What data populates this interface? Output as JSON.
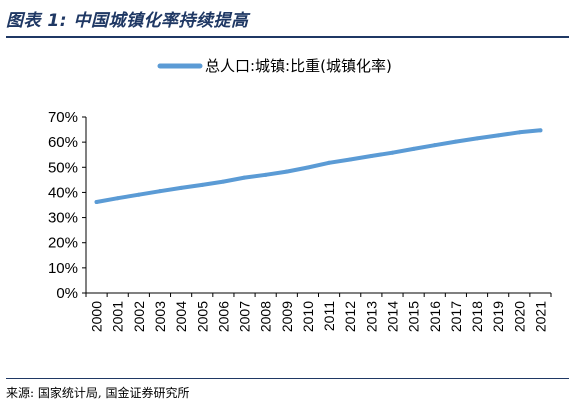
{
  "figure": {
    "title": "图表 1:  中国城镇化率持续提高",
    "source": "来源: 国家统计局, 国金证券研究所"
  },
  "colors": {
    "series_line": "#5b9bd5",
    "title_text": "#1f3864",
    "axis": "#000000"
  },
  "chart_data": {
    "type": "line",
    "title": "",
    "xlabel": "",
    "ylabel": "",
    "legend_position": "top-center",
    "grid": false,
    "categories": [
      "2000",
      "2001",
      "2002",
      "2003",
      "2004",
      "2005",
      "2006",
      "2007",
      "2008",
      "2009",
      "2010",
      "2011",
      "2012",
      "2013",
      "2014",
      "2015",
      "2016",
      "2017",
      "2018",
      "2019",
      "2020",
      "2021"
    ],
    "series": [
      {
        "name": "总人口:城镇:比重(城镇化率)",
        "values": [
          36.2,
          37.7,
          39.1,
          40.5,
          41.8,
          43.0,
          44.3,
          45.9,
          47.0,
          48.3,
          49.9,
          51.8,
          53.1,
          54.5,
          55.8,
          57.3,
          58.8,
          60.2,
          61.5,
          62.7,
          63.9,
          64.7
        ]
      }
    ],
    "y_ticks": [
      "0%",
      "10%",
      "20%",
      "30%",
      "40%",
      "50%",
      "60%",
      "70%"
    ],
    "ylim": [
      0,
      70
    ],
    "y_unit": "%"
  }
}
